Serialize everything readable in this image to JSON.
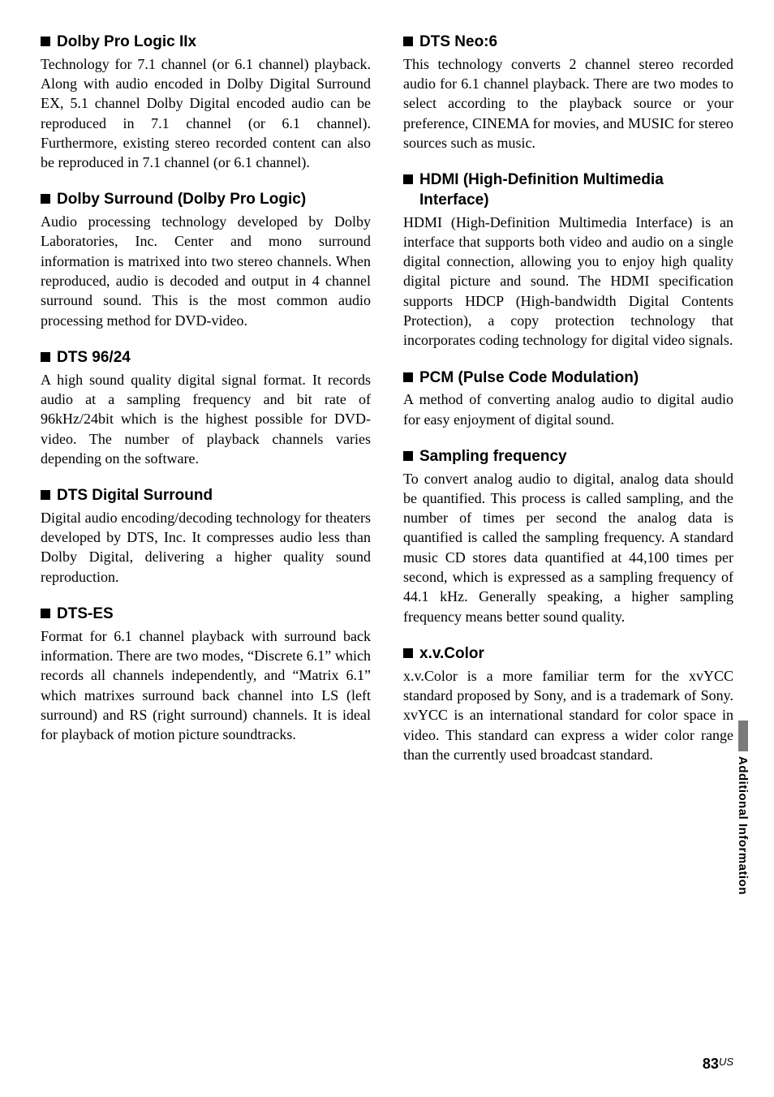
{
  "left": {
    "sections": [
      {
        "heading": "Dolby Pro Logic IIx",
        "body": "Technology for 7.1 channel (or 6.1 channel) playback. Along with audio encoded in Dolby Digital Surround EX, 5.1 channel Dolby Digital encoded audio can be reproduced in 7.1 channel (or 6.1 channel). Furthermore, existing stereo recorded content can also be reproduced in 7.1 channel (or 6.1 channel)."
      },
      {
        "heading": "Dolby Surround (Dolby Pro Logic)",
        "body": "Audio processing technology developed by Dolby Laboratories, Inc. Center and mono surround information is matrixed into two stereo channels. When reproduced, audio is decoded and output in 4 channel surround sound. This is the most common audio processing method for DVD-video."
      },
      {
        "heading": "DTS 96/24",
        "body": "A high sound quality digital signal format. It records audio at a sampling frequency and bit rate of 96kHz/24bit which is the highest possible for DVD-video. The number of playback channels varies depending on the software."
      },
      {
        "heading": "DTS Digital Surround",
        "body": "Digital audio encoding/decoding technology for theaters developed by DTS, Inc. It compresses audio less than Dolby Digital, delivering a higher quality sound reproduction."
      },
      {
        "heading": "DTS-ES",
        "body": "Format for 6.1 channel playback with surround back information. There are two modes, “Discrete 6.1” which records all channels independently, and “Matrix 6.1” which matrixes surround back channel into LS (left surround) and RS (right surround) channels. It is ideal for playback of motion picture soundtracks."
      }
    ]
  },
  "right": {
    "sections": [
      {
        "heading": "DTS Neo:6",
        "body": "This technology converts 2 channel stereo recorded audio for 6.1 channel playback. There are two modes to select according to the playback source or your preference, CINEMA for movies, and MUSIC for stereo sources such as music."
      },
      {
        "heading": "HDMI (High-Definition Multimedia Interface)",
        "body": "HDMI (High-Definition Multimedia Interface) is an interface that supports both video and audio on a single digital connection, allowing you to enjoy high quality digital picture and sound. The HDMI specification supports HDCP (High-bandwidth Digital Contents Protection), a copy protection technology that incorporates coding technology for digital video signals."
      },
      {
        "heading": "PCM (Pulse Code Modulation)",
        "body": "A method of converting analog audio to digital audio for easy enjoyment of digital sound."
      },
      {
        "heading": "Sampling frequency",
        "body": "To convert analog audio to digital, analog data should be quantified. This process is called sampling, and the number of times per second the analog data is quantified is called the sampling frequency. A standard music CD stores data quantified at 44,100 times per second, which is expressed as a sampling frequency of 44.1 kHz. Generally speaking, a higher sampling frequency means better sound quality."
      },
      {
        "heading": "x.v.Color",
        "body": "x.v.Color is a more familiar term for the xvYCC standard proposed by Sony, and is a trademark of Sony. xvYCC is an international standard for color space in video.\nThis standard can express a wider color range than the currently used broadcast standard."
      }
    ]
  },
  "sidebar": {
    "label": "Additional Information"
  },
  "footer": {
    "page": "83",
    "suffix": "US"
  },
  "style": {
    "body_font": "Times New Roman",
    "heading_font": "Arial",
    "heading_fontsize": 19,
    "body_fontsize": 18,
    "text_color": "#000000",
    "background_color": "#ffffff",
    "bullet_size": 12,
    "tab_color": "#7a7a7a"
  }
}
